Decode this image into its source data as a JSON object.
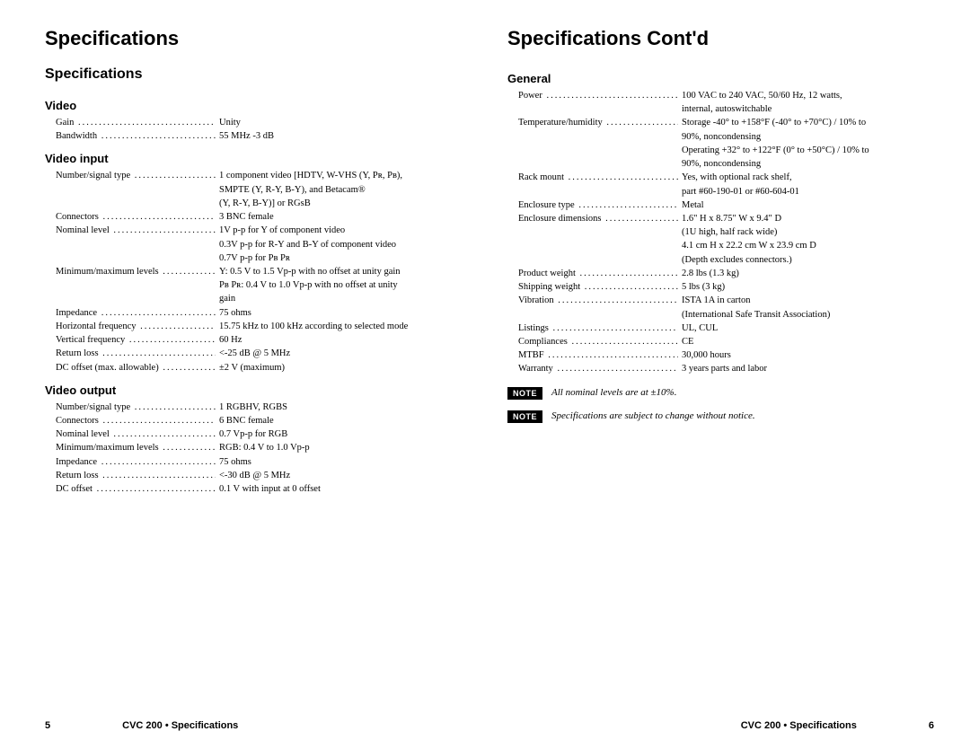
{
  "leftPage": {
    "title": "Specifications",
    "sectionTitle": "Specifications",
    "sections": [
      {
        "title": "Video",
        "rows": [
          {
            "label": "Gain",
            "value": "Unity"
          },
          {
            "label": "Bandwidth",
            "value": "55 MHz -3 dB"
          }
        ]
      },
      {
        "title": "Video input",
        "rows": [
          {
            "label": "Number/signal type",
            "value": "1 component video [HDTV, W-VHS (Y, Pʀ, Pʙ),",
            "cont": [
              "SMPTE (Y, R-Y, B-Y), and Betacam®",
              "(Y, R-Y, B-Y)] or RGsB"
            ]
          },
          {
            "label": "Connectors",
            "value": "3 BNC female"
          },
          {
            "label": "Nominal level",
            "value": "1V p-p for Y of component video",
            "cont": [
              "0.3V p-p for R-Y and B-Y of component video",
              "0.7V p-p for Pʙ Pʀ"
            ]
          },
          {
            "label": "Minimum/maximum levels",
            "value": "Y: 0.5 V to 1.5 Vp-p with no offset at unity gain",
            "cont": [
              "Pʙ Pʀ: 0.4 V to 1.0 Vp-p with no offset at unity",
              "gain"
            ]
          },
          {
            "label": "Impedance",
            "value": "75 ohms"
          },
          {
            "label": "Horizontal frequency",
            "value": "15.75 kHz to 100 kHz according to selected mode"
          },
          {
            "label": "Vertical frequency",
            "value": "60 Hz"
          },
          {
            "label": "Return loss",
            "value": "<-25 dB @ 5 MHz"
          },
          {
            "label": "DC offset (max. allowable)",
            "value": "±2 V (maximum)"
          }
        ]
      },
      {
        "title": "Video output",
        "rows": [
          {
            "label": "Number/signal type",
            "value": "1 RGBHV, RGBS"
          },
          {
            "label": "Connectors",
            "value": "6 BNC female"
          },
          {
            "label": "Nominal level",
            "value": "0.7 Vp-p for RGB"
          },
          {
            "label": "Minimum/maximum levels",
            "value": "RGB: 0.4 V to 1.0 Vp-p"
          },
          {
            "label": "Impedance",
            "value": "75 ohms"
          },
          {
            "label": "Return loss",
            "value": "<-30 dB @ 5 MHz"
          },
          {
            "label": "DC offset",
            "value": "0.1 V with input at 0 offset"
          }
        ]
      }
    ],
    "footer": {
      "pageNum": "5",
      "text": "CVC 200 • Specifications"
    }
  },
  "rightPage": {
    "title": "Specifications Cont'd",
    "sections": [
      {
        "title": "General",
        "rows": [
          {
            "label": "Power",
            "value": "100 VAC to 240 VAC, 50/60 Hz, 12 watts,",
            "cont": [
              "internal, autoswitchable"
            ]
          },
          {
            "label": "Temperature/humidity",
            "value": "Storage -40° to +158°F (-40° to +70°C) / 10% to",
            "cont": [
              "90%, noncondensing",
              "Operating +32° to +122°F (0° to +50°C) / 10% to",
              "90%, noncondensing"
            ]
          },
          {
            "label": "Rack mount",
            "value": "Yes, with optional rack shelf,",
            "cont": [
              "part #60-190-01 or #60-604-01"
            ]
          },
          {
            "label": "Enclosure type",
            "value": "Metal"
          },
          {
            "label": "Enclosure dimensions",
            "value": "1.6\" H x 8.75\" W x 9.4\" D",
            "cont": [
              "(1U high, half rack wide)",
              "4.1 cm H x 22.2 cm W x 23.9 cm D",
              "(Depth excludes connectors.)"
            ]
          },
          {
            "label": "Product weight",
            "value": "2.8 lbs (1.3 kg)"
          },
          {
            "label": "Shipping weight",
            "value": "5 lbs (3 kg)"
          },
          {
            "label": "Vibration",
            "value": "ISTA 1A in carton",
            "cont": [
              "(International Safe Transit Association)"
            ]
          },
          {
            "label": "Listings",
            "value": "UL, CUL"
          },
          {
            "label": "Compliances",
            "value": "CE"
          },
          {
            "label": "MTBF",
            "value": "30,000 hours"
          },
          {
            "label": "Warranty",
            "value": "3 years parts and labor"
          }
        ]
      }
    ],
    "notes": [
      {
        "badge": "NOTE",
        "text": "All nominal levels are at ±10%."
      },
      {
        "badge": "NOTE",
        "text": "Specifications are subject to change without notice."
      }
    ],
    "footer": {
      "pageNum": "6",
      "text": "CVC 200 • Specifications"
    }
  }
}
